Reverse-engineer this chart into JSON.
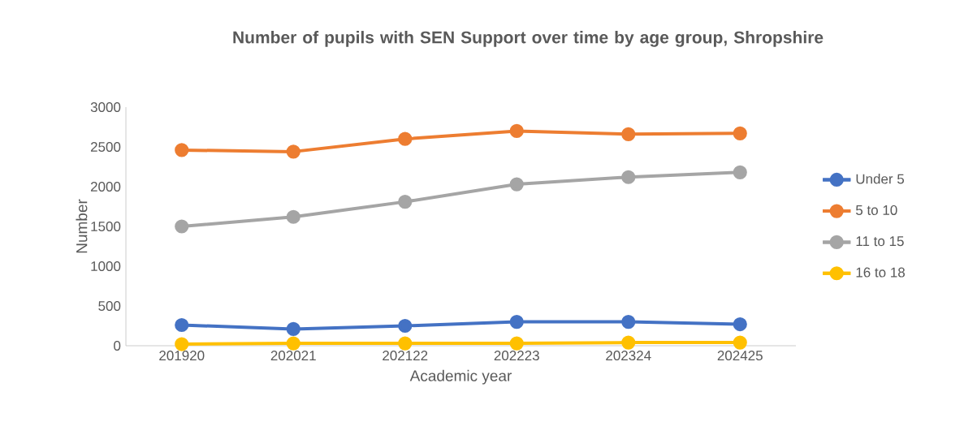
{
  "chart_data": {
    "type": "line",
    "title": "Number of pupils with SEN Support over time by age group, Shropshire",
    "xlabel": "Academic year",
    "ylabel": "Number",
    "categories": [
      "201920",
      "202021",
      "202122",
      "202223",
      "202324",
      "202425"
    ],
    "series": [
      {
        "name": "Under 5",
        "color": "#4472c4",
        "values": [
          260,
          210,
          250,
          300,
          300,
          270
        ]
      },
      {
        "name": "5 to 10",
        "color": "#ed7d31",
        "values": [
          2460,
          2440,
          2600,
          2700,
          2660,
          2670
        ]
      },
      {
        "name": "11 to 15",
        "color": "#a5a5a5",
        "values": [
          1500,
          1620,
          1810,
          2030,
          2120,
          2180
        ]
      },
      {
        "name": "16 to 18",
        "color": "#ffc000",
        "values": [
          20,
          30,
          30,
          30,
          40,
          40
        ]
      }
    ],
    "ylim": [
      0,
      3000
    ],
    "yticks": [
      0,
      500,
      1000,
      1500,
      2000,
      2500,
      3000
    ],
    "legend": "right",
    "marker": "circle",
    "grid": false
  }
}
